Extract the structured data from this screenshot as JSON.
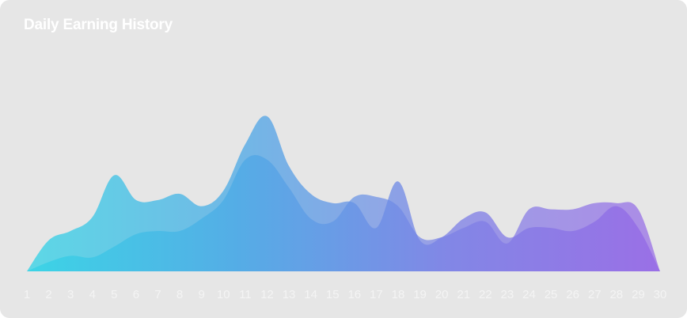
{
  "card": {
    "background": "#e6e6e6"
  },
  "chart_data": {
    "type": "area",
    "title": "Daily Earning History",
    "xlabel": "",
    "ylabel": "",
    "categories": [
      "1",
      "2",
      "3",
      "4",
      "5",
      "6",
      "7",
      "8",
      "9",
      "10",
      "11",
      "12",
      "13",
      "14",
      "15",
      "16",
      "17",
      "18",
      "19",
      "20",
      "21",
      "22",
      "23",
      "24",
      "25",
      "26",
      "27",
      "28",
      "29",
      "30"
    ],
    "series": [
      {
        "values": [
          0,
          20,
          26,
          35,
          62,
          46,
          46,
          50,
          42,
          52,
          82,
          100,
          68,
          50,
          44,
          44,
          28,
          58,
          20,
          22,
          34,
          38,
          22,
          28,
          28,
          26,
          32,
          42,
          28,
          0
        ],
        "color_start": "#4fd2e6",
        "color_end": "#9b72e6",
        "opacity": 0.75
      },
      {
        "values": [
          0,
          6,
          10,
          9,
          16,
          24,
          26,
          26,
          34,
          46,
          72,
          72,
          54,
          34,
          32,
          48,
          48,
          42,
          22,
          22,
          28,
          32,
          18,
          40,
          40,
          40,
          44,
          44,
          40,
          0
        ],
        "color_start": "#2ed3e6",
        "color_end": "#a070e0",
        "opacity": 0.7
      }
    ],
    "ylim": [
      0,
      100
    ],
    "grid": false,
    "legend": "none",
    "gradient": [
      "#2ed3e6",
      "#49a8e6",
      "#7a7fe6",
      "#9466e6"
    ]
  }
}
